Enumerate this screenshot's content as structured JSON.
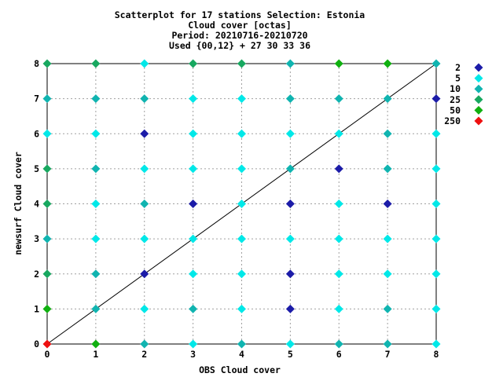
{
  "chart_data": {
    "type": "scatter",
    "title_lines": [
      "Scatterplot for   17 stations Selection: Estonia",
      "Cloud cover [octas]",
      "Period: 20210716-20210720",
      "Used {00,12} + 27 30 33 36"
    ],
    "xlabel": "OBS Cloud cover",
    "ylabel": "newsurf Cloud cover",
    "xlim": [
      0,
      8
    ],
    "ylim": [
      0,
      8
    ],
    "x_ticks": [
      "0",
      "1",
      "2",
      "3",
      "4",
      "5",
      "6",
      "7",
      "8"
    ],
    "y_ticks": [
      "0",
      "1",
      "2",
      "3",
      "4",
      "5",
      "6",
      "7",
      "8"
    ],
    "grid": true,
    "diagonal_line": true,
    "legend_position": "right",
    "legend": [
      {
        "label": "2",
        "color": "#1c1ca8"
      },
      {
        "label": "5",
        "color": "#00e8e8"
      },
      {
        "label": "10",
        "color": "#10b4b0"
      },
      {
        "label": "25",
        "color": "#18a860"
      },
      {
        "label": "50",
        "color": "#10b010"
      },
      {
        "label": "250",
        "color": "#ee1010"
      }
    ],
    "points": [
      {
        "x": 0,
        "y": 8,
        "c": 3
      },
      {
        "x": 1,
        "y": 8,
        "c": 3
      },
      {
        "x": 2,
        "y": 8,
        "c": 1
      },
      {
        "x": 3,
        "y": 8,
        "c": 3
      },
      {
        "x": 4,
        "y": 8,
        "c": 3
      },
      {
        "x": 5,
        "y": 8,
        "c": 2
      },
      {
        "x": 6,
        "y": 8,
        "c": 4
      },
      {
        "x": 7,
        "y": 8,
        "c": 4
      },
      {
        "x": 8,
        "y": 8,
        "c": 2
      },
      {
        "x": 0,
        "y": 7,
        "c": 2
      },
      {
        "x": 1,
        "y": 7,
        "c": 2
      },
      {
        "x": 2,
        "y": 7,
        "c": 2
      },
      {
        "x": 3,
        "y": 7,
        "c": 1
      },
      {
        "x": 4,
        "y": 7,
        "c": 1
      },
      {
        "x": 5,
        "y": 7,
        "c": 2
      },
      {
        "x": 6,
        "y": 7,
        "c": 2
      },
      {
        "x": 7,
        "y": 7,
        "c": 2
      },
      {
        "x": 8,
        "y": 7,
        "c": 0
      },
      {
        "x": 0,
        "y": 6,
        "c": 1
      },
      {
        "x": 1,
        "y": 6,
        "c": 1
      },
      {
        "x": 2,
        "y": 6,
        "c": 0
      },
      {
        "x": 3,
        "y": 6,
        "c": 1
      },
      {
        "x": 4,
        "y": 6,
        "c": 1
      },
      {
        "x": 5,
        "y": 6,
        "c": 1
      },
      {
        "x": 6,
        "y": 6,
        "c": 1
      },
      {
        "x": 7,
        "y": 6,
        "c": 2
      },
      {
        "x": 8,
        "y": 6,
        "c": 1
      },
      {
        "x": 0,
        "y": 5,
        "c": 3
      },
      {
        "x": 1,
        "y": 5,
        "c": 2
      },
      {
        "x": 2,
        "y": 5,
        "c": 1
      },
      {
        "x": 3,
        "y": 5,
        "c": 1
      },
      {
        "x": 4,
        "y": 5,
        "c": 1
      },
      {
        "x": 5,
        "y": 5,
        "c": 2
      },
      {
        "x": 6,
        "y": 5,
        "c": 0
      },
      {
        "x": 7,
        "y": 5,
        "c": 2
      },
      {
        "x": 8,
        "y": 5,
        "c": 1
      },
      {
        "x": 0,
        "y": 4,
        "c": 3
      },
      {
        "x": 1,
        "y": 4,
        "c": 1
      },
      {
        "x": 2,
        "y": 4,
        "c": 2
      },
      {
        "x": 3,
        "y": 4,
        "c": 0
      },
      {
        "x": 4,
        "y": 4,
        "c": 1
      },
      {
        "x": 5,
        "y": 4,
        "c": 0
      },
      {
        "x": 6,
        "y": 4,
        "c": 1
      },
      {
        "x": 7,
        "y": 4,
        "c": 0
      },
      {
        "x": 8,
        "y": 4,
        "c": 1
      },
      {
        "x": 0,
        "y": 3,
        "c": 2
      },
      {
        "x": 1,
        "y": 3,
        "c": 1
      },
      {
        "x": 2,
        "y": 3,
        "c": 1
      },
      {
        "x": 3,
        "y": 3,
        "c": 1
      },
      {
        "x": 4,
        "y": 3,
        "c": 1
      },
      {
        "x": 5,
        "y": 3,
        "c": 1
      },
      {
        "x": 6,
        "y": 3,
        "c": 1
      },
      {
        "x": 7,
        "y": 3,
        "c": 1
      },
      {
        "x": 8,
        "y": 3,
        "c": 1
      },
      {
        "x": 0,
        "y": 2,
        "c": 3
      },
      {
        "x": 1,
        "y": 2,
        "c": 2
      },
      {
        "x": 2,
        "y": 2,
        "c": 0
      },
      {
        "x": 3,
        "y": 2,
        "c": 1
      },
      {
        "x": 4,
        "y": 2,
        "c": 1
      },
      {
        "x": 5,
        "y": 2,
        "c": 0
      },
      {
        "x": 6,
        "y": 2,
        "c": 1
      },
      {
        "x": 7,
        "y": 2,
        "c": 1
      },
      {
        "x": 8,
        "y": 2,
        "c": 1
      },
      {
        "x": 0,
        "y": 1,
        "c": 4
      },
      {
        "x": 1,
        "y": 1,
        "c": 2
      },
      {
        "x": 2,
        "y": 1,
        "c": 1
      },
      {
        "x": 3,
        "y": 1,
        "c": 2
      },
      {
        "x": 4,
        "y": 1,
        "c": 1
      },
      {
        "x": 5,
        "y": 1,
        "c": 0
      },
      {
        "x": 6,
        "y": 1,
        "c": 1
      },
      {
        "x": 7,
        "y": 1,
        "c": 2
      },
      {
        "x": 8,
        "y": 1,
        "c": 1
      },
      {
        "x": 0,
        "y": 0,
        "c": 5
      },
      {
        "x": 1,
        "y": 0,
        "c": 4
      },
      {
        "x": 2,
        "y": 0,
        "c": 2
      },
      {
        "x": 3,
        "y": 0,
        "c": 1
      },
      {
        "x": 4,
        "y": 0,
        "c": 2
      },
      {
        "x": 5,
        "y": 0,
        "c": 1
      },
      {
        "x": 6,
        "y": 0,
        "c": 2
      },
      {
        "x": 7,
        "y": 0,
        "c": 2
      },
      {
        "x": 8,
        "y": 0,
        "c": 1
      }
    ]
  }
}
